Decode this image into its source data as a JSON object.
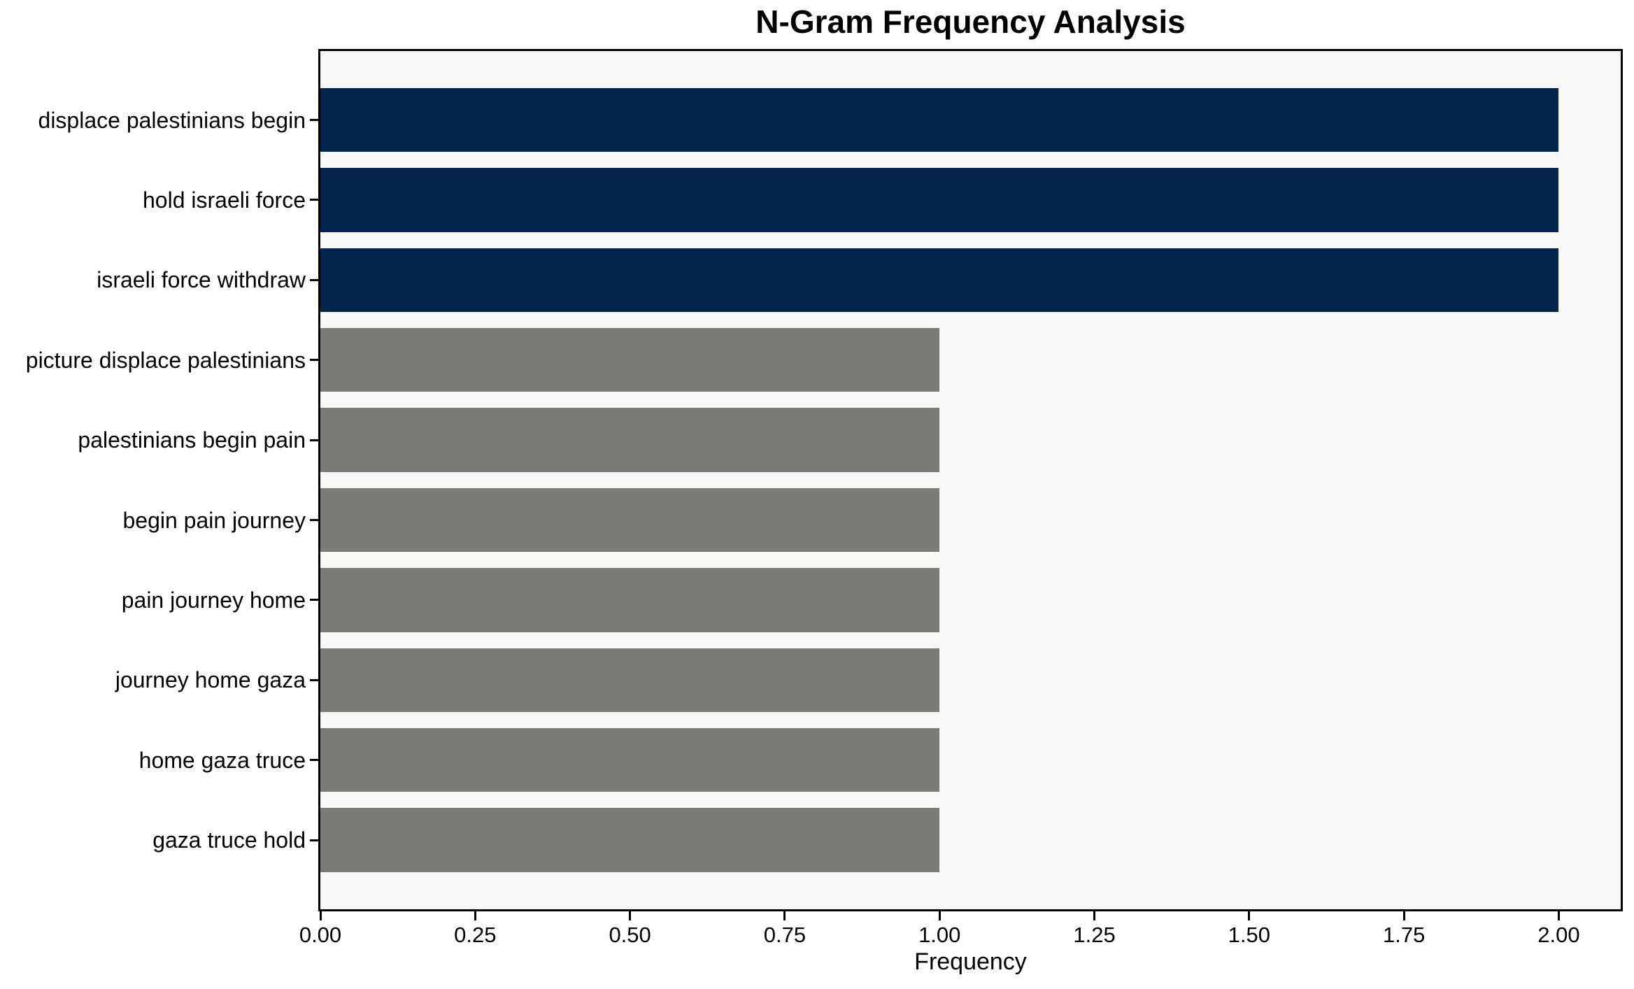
{
  "chart_data": {
    "type": "bar",
    "orientation": "horizontal",
    "title": "N-Gram Frequency Analysis",
    "xlabel": "Frequency",
    "ylabel": "",
    "categories": [
      "displace palestinians begin",
      "hold israeli force",
      "israeli force withdraw",
      "picture displace palestinians",
      "palestinians begin pain",
      "begin pain journey",
      "pain journey home",
      "journey home gaza",
      "home gaza truce",
      "gaza truce hold"
    ],
    "values": [
      2,
      2,
      2,
      1,
      1,
      1,
      1,
      1,
      1,
      1
    ],
    "bar_colors": [
      "#03254C",
      "#03254C",
      "#03254C",
      "#7B7B77",
      "#7B7B77",
      "#7B7B77",
      "#7B7B77",
      "#7B7B77",
      "#7B7B77",
      "#7B7B77"
    ],
    "color_high_frequency": "#03254C",
    "color_low_frequency": "#7B7B77",
    "xlim": [
      0,
      2.1
    ],
    "xtick_values": [
      0,
      0.25,
      0.5,
      0.75,
      1.0,
      1.25,
      1.5,
      1.75,
      2.0
    ],
    "xtick_labels": [
      "0.00",
      "0.25",
      "0.50",
      "0.75",
      "1.00",
      "1.25",
      "1.50",
      "1.75",
      "2.00"
    ],
    "grid": false,
    "legend": null,
    "plot_background": "#F7F7F6",
    "figure_background": "#FFFFFF",
    "bar_height_ratio": 0.8
  }
}
